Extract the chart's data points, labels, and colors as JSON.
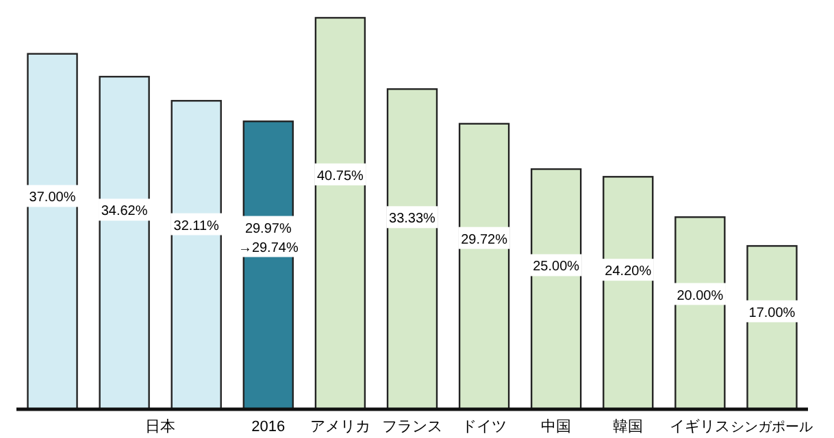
{
  "chart_data": {
    "type": "bar",
    "categories": [
      null,
      null,
      null,
      "2016",
      "アメリカ",
      "フランス",
      "ドイツ",
      "中国",
      "韓国",
      "イギリス",
      "シンガポール"
    ],
    "values": [
      37.0,
      34.62,
      32.11,
      29.97,
      40.75,
      33.33,
      29.72,
      25.0,
      24.2,
      20.0,
      17.0
    ],
    "colors": [
      "#d3ecf3",
      "#d3ecf3",
      "#d3ecf3",
      "#2e8199",
      "#d6e9c9",
      "#d6e9c9",
      "#d6e9c9",
      "#d6e9c9",
      "#d6e9c9",
      "#d6e9c9",
      "#d6e9c9"
    ],
    "value_labels": [
      "37.00%",
      "34.62%",
      "32.11%",
      "29.97%\n→29.74%",
      "40.75%",
      "33.33%",
      "29.72%",
      "25.00%",
      "24.20%",
      "20.00%",
      "17.00%"
    ],
    "annotations": [
      "日本"
    ],
    "tick_labels": "x"
  }
}
